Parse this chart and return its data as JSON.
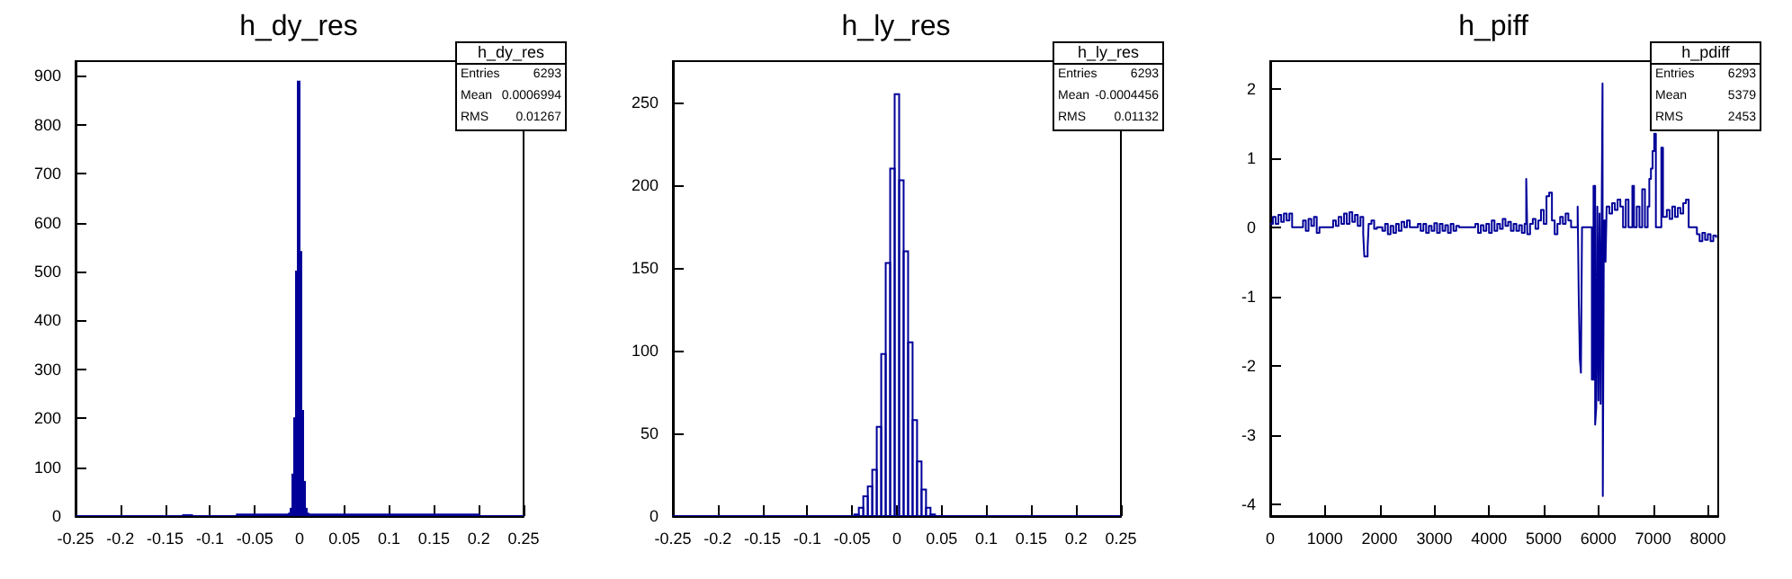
{
  "chart_data": [
    {
      "type": "histogram",
      "title": "h_dy_res",
      "color": "#000099",
      "bins": [
        -0.25,
        -0.13,
        -0.12,
        -0.07,
        -0.012,
        -0.01,
        -0.008,
        -0.006,
        -0.004,
        -0.002,
        0,
        0.002,
        0.004,
        0.006,
        0.008,
        0.01,
        0.012,
        0.2,
        0.25
      ],
      "values": [
        0,
        2,
        0,
        3,
        5,
        15,
        85,
        200,
        500,
        888,
        540,
        215,
        70,
        15,
        5,
        2,
        3,
        0
      ],
      "xlim": [
        -0.25,
        0.25
      ],
      "xticks": [
        -0.25,
        -0.2,
        -0.15,
        -0.1,
        -0.05,
        0,
        0.05,
        0.1,
        0.15,
        0.2,
        0.25
      ],
      "ylim": [
        0,
        930
      ],
      "yticks": [
        0,
        100,
        200,
        300,
        400,
        500,
        600,
        700,
        800,
        900
      ],
      "annotations": [
        "h_dy_res",
        "Entries 6293",
        "Mean 0.0006994",
        "RMS 0.01267"
      ]
    },
    {
      "type": "histogram",
      "title": "h_ly_res",
      "color": "#000099",
      "bins": [
        -0.25,
        -0.0475,
        -0.0425,
        -0.0375,
        -0.0325,
        -0.0275,
        -0.0225,
        -0.0175,
        -0.0125,
        -0.0075,
        -0.0025,
        0.0025,
        0.0075,
        0.0125,
        0.0175,
        0.0225,
        0.0275,
        0.0325,
        0.0375,
        0.0425,
        0.25
      ],
      "values": [
        0,
        1,
        5,
        12,
        18,
        28,
        54,
        98,
        153,
        210,
        255,
        203,
        160,
        105,
        58,
        33,
        16,
        5,
        1,
        0
      ],
      "xlim": [
        -0.25,
        0.25
      ],
      "xticks": [
        -0.25,
        -0.2,
        -0.15,
        -0.1,
        -0.05,
        0,
        0.05,
        0.1,
        0.15,
        0.2,
        0.25
      ],
      "ylim": [
        0,
        275
      ],
      "yticks": [
        0,
        50,
        100,
        150,
        200,
        250
      ],
      "annotations": [
        "h_ly_res",
        "Entries 6293",
        "Mean -0.0004456",
        "RMS 0.01132"
      ]
    },
    {
      "type": "step",
      "title": "h_piff",
      "color": "#000099",
      "x": [
        0,
        50,
        100,
        150,
        200,
        250,
        300,
        350,
        400,
        600,
        650,
        700,
        750,
        800,
        850,
        900,
        1150,
        1200,
        1250,
        1300,
        1350,
        1400,
        1450,
        1500,
        1550,
        1600,
        1650,
        1700,
        1720,
        1780,
        1800,
        1850,
        1900,
        1950,
        2050,
        2100,
        2150,
        2200,
        2250,
        2300,
        2350,
        2400,
        2450,
        2500,
        2550,
        2700,
        2750,
        2800,
        2850,
        2900,
        2950,
        3000,
        3050,
        3100,
        3150,
        3200,
        3250,
        3300,
        3350,
        3400,
        3450,
        3750,
        3800,
        3850,
        3900,
        3950,
        4000,
        4050,
        4100,
        4150,
        4200,
        4250,
        4300,
        4350,
        4400,
        4450,
        4500,
        4550,
        4600,
        4650,
        4680,
        4700,
        4750,
        4800,
        4850,
        4900,
        4950,
        5000,
        5050,
        5100,
        5150,
        5200,
        5250,
        5300,
        5350,
        5400,
        5450,
        5500,
        5620,
        5640,
        5660,
        5680,
        5700,
        5880,
        5910,
        5940,
        5960,
        5980,
        6000,
        6020,
        6040,
        6060,
        6075,
        6080,
        6100,
        6130,
        6150,
        6200,
        6250,
        6300,
        6350,
        6400,
        6450,
        6500,
        6550,
        6620,
        6650,
        6700,
        6750,
        6800,
        6850,
        6900,
        6930,
        6960,
        6990,
        7020,
        7050,
        7150,
        7180,
        7250,
        7300,
        7350,
        7400,
        7450,
        7500,
        7550,
        7600,
        7650,
        7800,
        7850,
        7900,
        7950,
        8000,
        8050,
        8100,
        8150
      ],
      "values": [
        0.05,
        0.15,
        0.05,
        0.18,
        0.08,
        0.2,
        0.1,
        0.2,
        0,
        0.1,
        -0.05,
        0.12,
        0.02,
        0.15,
        -0.08,
        0,
        0.1,
        0.02,
        0.15,
        0.05,
        0.2,
        0.05,
        0.22,
        0.08,
        0.18,
        0.02,
        0.15,
        -0.1,
        -0.42,
        -0.3,
        0.05,
        0.1,
        -0.02,
        0,
        -0.05,
        0.05,
        -0.1,
        0.02,
        -0.08,
        0.05,
        -0.05,
        0.08,
        0,
        0.1,
        0,
        0.05,
        -0.05,
        0.05,
        -0.08,
        0.02,
        -0.05,
        0.06,
        -0.08,
        0.05,
        -0.05,
        0.03,
        -0.08,
        0.05,
        -0.05,
        0.02,
        0,
        0.05,
        -0.08,
        0.03,
        -0.05,
        0.05,
        -0.08,
        0.1,
        -0.05,
        0.05,
        -0.02,
        0.12,
        0.02,
        0.08,
        -0.05,
        0.05,
        -0.05,
        0.03,
        -0.08,
        0.05,
        0.7,
        -0.1,
        0.05,
        0.12,
        -0.02,
        0.1,
        0.25,
        0.05,
        0.45,
        0.5,
        0.1,
        -0.1,
        0.05,
        0.15,
        0.05,
        0.2,
        0.1,
        0,
        0.3,
        -1,
        -1.9,
        -2.1,
        0,
        -2.2,
        0.6,
        -2.85,
        -2.6,
        0.3,
        -2.5,
        0.2,
        -2.55,
        0.3,
        2.08,
        -3.88,
        0.1,
        -0.5,
        0.3,
        0.2,
        0.35,
        0.25,
        0.4,
        0.3,
        0,
        0.4,
        0,
        0.6,
        0,
        0.3,
        0,
        0.55,
        0,
        0.3,
        0.7,
        0.85,
        1.1,
        1.35,
        0,
        1.15,
        0.15,
        0.25,
        0.12,
        0.3,
        0.15,
        0.28,
        0.2,
        0.35,
        0.4,
        0,
        -0.1,
        -0.2,
        -0.08,
        -0.18,
        -0.1,
        -0.2,
        -0.12,
        -0.15
      ],
      "xlim": [
        0,
        8190
      ],
      "xticks": [
        0,
        1000,
        2000,
        3000,
        4000,
        5000,
        6000,
        7000,
        8000
      ],
      "ylim": [
        -4.17,
        2.4
      ],
      "yticks": [
        -4,
        -3,
        -2,
        -1,
        0,
        1,
        2
      ],
      "annotations": [
        "h_pdiff",
        "Entries 6293",
        "Mean 5379",
        "RMS 2453"
      ]
    }
  ]
}
